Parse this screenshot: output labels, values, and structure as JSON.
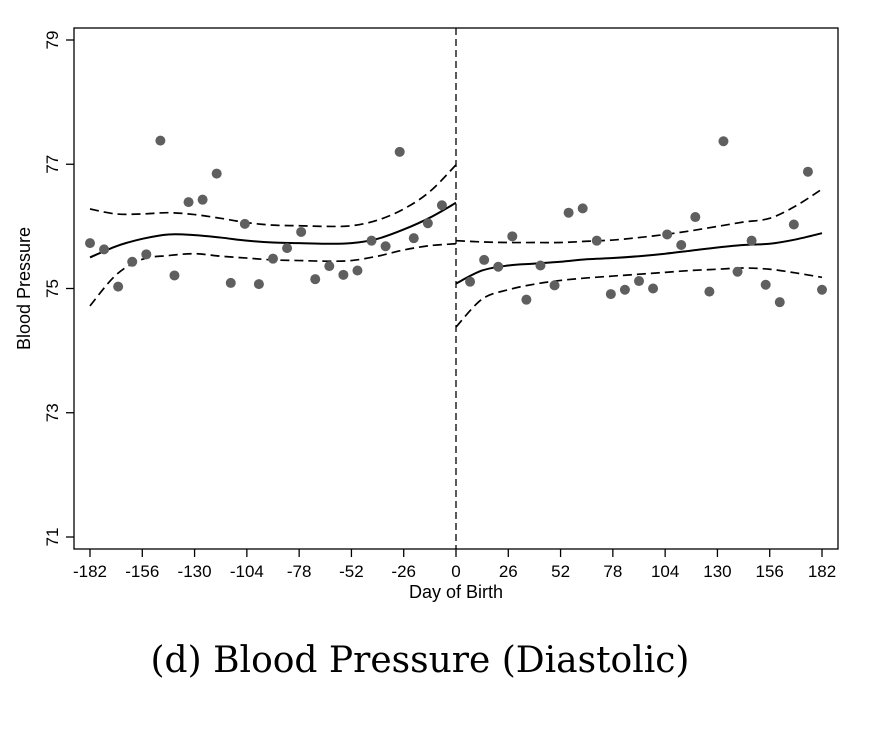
{
  "caption": "(d)  Blood Pressure (Diastolic)",
  "chart_data": {
    "type": "scatter",
    "title": "",
    "xlabel": "Day of Birth",
    "ylabel": "Blood Pressure",
    "xlim": [
      -182,
      182
    ],
    "ylim": [
      71,
      79
    ],
    "x_ticks": [
      -182,
      -156,
      -130,
      -104,
      -78,
      -52,
      -26,
      0,
      26,
      52,
      78,
      104,
      130,
      156,
      182
    ],
    "y_ticks": [
      71,
      73,
      75,
      77,
      79
    ],
    "cutoff_x": 0,
    "colors": {
      "points": "#5f5f5f",
      "lines": "#000000",
      "frame": "#000000"
    },
    "series": [
      {
        "type": "scatter",
        "x": [
          -182,
          -175,
          -168,
          -161,
          -154,
          -147,
          -140,
          -133,
          -126,
          -119,
          -112,
          -105,
          -98,
          -91,
          -84,
          -77,
          -70,
          -63,
          -56,
          -49,
          -42,
          -35,
          -28,
          -21,
          -14,
          -7,
          7,
          14,
          21,
          28,
          35,
          42,
          49,
          56,
          63,
          70,
          77,
          84,
          91,
          98,
          105,
          112,
          119,
          126,
          133,
          140,
          147,
          154,
          161,
          168,
          175,
          182
        ],
        "y": [
          75.73,
          75.63,
          75.03,
          75.43,
          75.55,
          77.38,
          75.21,
          76.39,
          76.43,
          76.85,
          75.09,
          76.04,
          75.07,
          75.48,
          75.65,
          75.91,
          75.15,
          75.36,
          75.22,
          75.29,
          75.77,
          75.68,
          77.2,
          75.81,
          76.05,
          76.34,
          75.11,
          75.46,
          75.35,
          75.84,
          74.82,
          75.37,
          75.05,
          76.22,
          76.29,
          75.77,
          74.91,
          74.98,
          75.12,
          75.0,
          75.87,
          75.7,
          76.15,
          74.95,
          77.37,
          75.27,
          75.77,
          75.06,
          74.78,
          76.03,
          76.88,
          74.98
        ]
      },
      {
        "type": "line",
        "segment": "left",
        "x": [
          -182,
          -169,
          -156,
          -143,
          -130,
          -117,
          -104,
          -91,
          -78,
          -65,
          -52,
          -39,
          -26,
          -13,
          0
        ],
        "fit": [
          75.5,
          75.68,
          75.8,
          75.87,
          75.86,
          75.82,
          75.77,
          75.74,
          75.73,
          75.72,
          75.73,
          75.8,
          75.95,
          76.14,
          76.38
        ],
        "lower": [
          74.72,
          75.22,
          75.47,
          75.53,
          75.56,
          75.52,
          75.49,
          75.46,
          75.45,
          75.44,
          75.45,
          75.52,
          75.62,
          75.69,
          75.72
        ],
        "upper": [
          76.28,
          76.2,
          76.2,
          76.22,
          76.19,
          76.13,
          76.06,
          76.02,
          76.01,
          76.0,
          76.01,
          76.1,
          76.28,
          76.56,
          76.99
        ]
      },
      {
        "type": "line",
        "segment": "right",
        "x": [
          0,
          13,
          26,
          39,
          52,
          65,
          78,
          91,
          104,
          117,
          130,
          143,
          156,
          169,
          182
        ],
        "fit": [
          75.08,
          75.29,
          75.37,
          75.4,
          75.43,
          75.47,
          75.49,
          75.52,
          75.56,
          75.61,
          75.66,
          75.7,
          75.72,
          75.79,
          75.89
        ],
        "lower": [
          74.38,
          74.83,
          74.98,
          75.07,
          75.13,
          75.17,
          75.2,
          75.23,
          75.26,
          75.29,
          75.31,
          75.33,
          75.31,
          75.25,
          75.18
        ],
        "upper": [
          75.77,
          75.75,
          75.74,
          75.74,
          75.74,
          75.76,
          75.78,
          75.82,
          75.87,
          75.93,
          76.0,
          76.07,
          76.13,
          76.33,
          76.6
        ]
      }
    ]
  }
}
